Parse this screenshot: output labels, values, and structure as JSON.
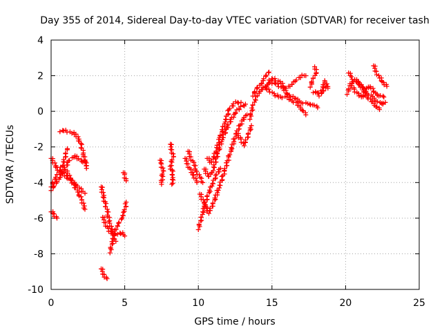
{
  "chart_data": {
    "type": "scatter",
    "title": "Day 355 of 2014, Sidereal Day-to-day VTEC variation (SDTVAR) for receiver tash",
    "xlabel": "GPS time / hours",
    "ylabel": "SDTVAR / TECUs",
    "xlim": [
      0,
      25
    ],
    "ylim": [
      -10,
      4
    ],
    "xticks": [
      0,
      5,
      10,
      15,
      20,
      25
    ],
    "yticks": [
      -10,
      -8,
      -6,
      -4,
      -2,
      0,
      2,
      4
    ],
    "grid": true,
    "marker": "+",
    "color": "#ff0000",
    "series_segments": [
      {
        "name": "s1",
        "points": [
          [
            0.0,
            -2.6
          ],
          [
            0.4,
            -3.2
          ],
          [
            0.9,
            -3.6
          ],
          [
            1.4,
            -3.9
          ],
          [
            1.9,
            -4.3
          ],
          [
            2.3,
            -4.6
          ]
        ]
      },
      {
        "name": "s2",
        "points": [
          [
            0.0,
            -4.4
          ],
          [
            0.4,
            -4.0
          ],
          [
            0.8,
            -3.4
          ],
          [
            1.2,
            -2.8
          ],
          [
            1.6,
            -2.5
          ],
          [
            2.1,
            -2.8
          ],
          [
            2.4,
            -2.9
          ]
        ]
      },
      {
        "name": "s3",
        "points": [
          [
            0.0,
            -4.2
          ],
          [
            0.4,
            -3.6
          ],
          [
            0.8,
            -3.0
          ],
          [
            1.0,
            -2.4
          ],
          [
            1.1,
            -2.1
          ]
        ]
      },
      {
        "name": "s4",
        "points": [
          [
            0.6,
            -1.1
          ],
          [
            1.0,
            -1.1
          ],
          [
            1.4,
            -1.2
          ],
          [
            1.7,
            -1.3
          ],
          [
            2.0,
            -1.8
          ],
          [
            2.2,
            -2.4
          ],
          [
            2.4,
            -3.2
          ]
        ]
      },
      {
        "name": "s5",
        "points": [
          [
            1.0,
            -3.3
          ],
          [
            1.4,
            -3.9
          ],
          [
            1.8,
            -4.5
          ],
          [
            2.1,
            -5.0
          ],
          [
            2.3,
            -5.5
          ]
        ]
      },
      {
        "name": "s6",
        "points": [
          [
            0.0,
            -5.6
          ],
          [
            0.2,
            -5.8
          ],
          [
            0.4,
            -6.0
          ]
        ]
      },
      {
        "name": "s7",
        "points": [
          [
            3.4,
            -8.8
          ],
          [
            3.6,
            -9.2
          ],
          [
            3.8,
            -9.4
          ]
        ]
      },
      {
        "name": "s8",
        "points": [
          [
            3.4,
            -4.2
          ],
          [
            3.6,
            -4.9
          ],
          [
            3.8,
            -5.6
          ],
          [
            4.0,
            -6.3
          ],
          [
            4.2,
            -6.9
          ],
          [
            4.4,
            -7.3
          ]
        ]
      },
      {
        "name": "s9",
        "points": [
          [
            3.5,
            -5.9
          ],
          [
            3.7,
            -6.3
          ],
          [
            3.9,
            -6.7
          ],
          [
            4.2,
            -6.9
          ],
          [
            4.5,
            -6.9
          ],
          [
            4.9,
            -6.8
          ],
          [
            5.0,
            -7.0
          ]
        ]
      },
      {
        "name": "s10",
        "points": [
          [
            4.0,
            -7.9
          ],
          [
            4.2,
            -7.2
          ],
          [
            4.4,
            -6.6
          ],
          [
            4.6,
            -6.3
          ],
          [
            4.8,
            -6.0
          ],
          [
            5.0,
            -5.6
          ],
          [
            5.1,
            -5.1
          ]
        ]
      },
      {
        "name": "s11",
        "points": [
          [
            4.9,
            -3.4
          ],
          [
            5.0,
            -3.6
          ],
          [
            5.1,
            -3.9
          ]
        ]
      },
      {
        "name": "s12",
        "points": [
          [
            7.4,
            -2.7
          ],
          [
            7.5,
            -3.0
          ],
          [
            7.6,
            -3.3
          ],
          [
            7.5,
            -4.1
          ]
        ]
      },
      {
        "name": "s13",
        "points": [
          [
            8.1,
            -1.8
          ],
          [
            8.2,
            -2.2
          ],
          [
            8.3,
            -2.5
          ],
          [
            8.1,
            -3.1
          ],
          [
            8.2,
            -3.3
          ],
          [
            8.3,
            -3.7
          ],
          [
            8.2,
            -4.1
          ]
        ]
      },
      {
        "name": "s14",
        "points": [
          [
            9.1,
            -2.6
          ],
          [
            9.3,
            -3.0
          ],
          [
            9.5,
            -3.4
          ],
          [
            9.7,
            -3.6
          ],
          [
            9.9,
            -4.0
          ]
        ]
      },
      {
        "name": "s15",
        "points": [
          [
            9.3,
            -2.2
          ],
          [
            9.5,
            -2.6
          ],
          [
            9.7,
            -3.0
          ],
          [
            9.9,
            -3.4
          ],
          [
            10.1,
            -3.7
          ],
          [
            10.3,
            -4.0
          ]
        ]
      },
      {
        "name": "s16",
        "points": [
          [
            10.0,
            -6.6
          ],
          [
            10.2,
            -6.0
          ],
          [
            10.4,
            -5.4
          ],
          [
            10.6,
            -4.8
          ],
          [
            10.9,
            -4.2
          ],
          [
            11.2,
            -3.6
          ],
          [
            11.5,
            -3.2
          ]
        ]
      },
      {
        "name": "s17",
        "points": [
          [
            10.1,
            -4.6
          ],
          [
            10.4,
            -5.2
          ],
          [
            10.7,
            -5.7
          ],
          [
            11.0,
            -5.2
          ],
          [
            11.4,
            -4.3
          ],
          [
            11.8,
            -3.3
          ],
          [
            12.2,
            -2.2
          ],
          [
            12.6,
            -1.2
          ],
          [
            13.0,
            -0.5
          ],
          [
            13.3,
            -0.2
          ]
        ]
      },
      {
        "name": "s18",
        "points": [
          [
            10.4,
            -3.2
          ],
          [
            10.7,
            -3.7
          ],
          [
            11.0,
            -3.3
          ],
          [
            11.3,
            -2.4
          ],
          [
            11.6,
            -1.6
          ],
          [
            12.0,
            -0.8
          ],
          [
            12.4,
            -0.2
          ],
          [
            12.8,
            0.2
          ],
          [
            13.2,
            0.4
          ]
        ]
      },
      {
        "name": "s19",
        "points": [
          [
            10.6,
            -2.6
          ],
          [
            10.9,
            -2.9
          ],
          [
            11.2,
            -2.2
          ],
          [
            11.5,
            -1.4
          ],
          [
            11.8,
            -0.6
          ],
          [
            12.1,
            0.1
          ],
          [
            12.5,
            0.5
          ],
          [
            12.9,
            0.5
          ]
        ]
      },
      {
        "name": "s20",
        "points": [
          [
            12.6,
            -1.2
          ],
          [
            12.9,
            -1.6
          ],
          [
            13.1,
            -1.9
          ],
          [
            13.4,
            -1.3
          ],
          [
            13.6,
            -0.8
          ]
        ]
      },
      {
        "name": "s21",
        "points": [
          [
            13.5,
            -0.4
          ],
          [
            13.7,
            0.3
          ],
          [
            14.0,
            0.9
          ],
          [
            14.3,
            1.2
          ],
          [
            14.6,
            1.4
          ],
          [
            14.8,
            1.6
          ],
          [
            15.0,
            1.7
          ]
        ]
      },
      {
        "name": "s22",
        "points": [
          [
            13.7,
            0.9
          ],
          [
            14.0,
            1.3
          ],
          [
            14.3,
            1.6
          ],
          [
            14.6,
            2.0
          ],
          [
            14.8,
            2.2
          ]
        ]
      },
      {
        "name": "s23",
        "points": [
          [
            14.4,
            1.4
          ],
          [
            14.8,
            1.2
          ],
          [
            15.2,
            0.9
          ],
          [
            15.6,
            0.8
          ],
          [
            16.0,
            0.8
          ],
          [
            16.4,
            0.6
          ],
          [
            16.8,
            0.3
          ],
          [
            17.1,
            0.1
          ],
          [
            17.3,
            -0.2
          ]
        ]
      },
      {
        "name": "s24",
        "points": [
          [
            15.0,
            1.6
          ],
          [
            15.4,
            1.5
          ],
          [
            15.8,
            1.2
          ],
          [
            16.2,
            0.9
          ],
          [
            16.6,
            0.7
          ],
          [
            17.0,
            0.5
          ],
          [
            17.4,
            0.4
          ],
          [
            17.8,
            0.4
          ],
          [
            18.1,
            0.2
          ]
        ]
      },
      {
        "name": "s25",
        "points": [
          [
            14.8,
            1.8
          ],
          [
            15.2,
            1.8
          ],
          [
            15.6,
            1.6
          ],
          [
            15.9,
            1.3
          ],
          [
            16.2,
            1.4
          ],
          [
            16.6,
            1.7
          ],
          [
            17.0,
            2.0
          ],
          [
            17.3,
            2.0
          ]
        ]
      },
      {
        "name": "s26",
        "points": [
          [
            17.6,
            1.4
          ],
          [
            17.8,
            1.8
          ],
          [
            18.0,
            2.2
          ],
          [
            17.9,
            2.5
          ]
        ]
      },
      {
        "name": "s27",
        "points": [
          [
            17.8,
            1.1
          ],
          [
            18.1,
            1.0
          ],
          [
            18.4,
            1.2
          ],
          [
            18.6,
            1.7
          ],
          [
            18.8,
            1.3
          ]
        ]
      },
      {
        "name": "s28",
        "points": [
          [
            18.2,
            0.9
          ],
          [
            18.5,
            1.1
          ],
          [
            18.7,
            1.4
          ]
        ]
      },
      {
        "name": "s29",
        "points": [
          [
            20.1,
            1.0
          ],
          [
            20.3,
            1.4
          ],
          [
            20.6,
            1.8
          ],
          [
            20.9,
            1.6
          ],
          [
            21.2,
            1.3
          ],
          [
            21.5,
            1.0
          ],
          [
            21.8,
            0.8
          ],
          [
            22.1,
            0.6
          ],
          [
            22.4,
            0.4
          ],
          [
            22.7,
            0.5
          ]
        ]
      },
      {
        "name": "s30",
        "points": [
          [
            20.2,
            2.2
          ],
          [
            20.4,
            1.9
          ],
          [
            20.7,
            1.7
          ],
          [
            21.0,
            1.5
          ],
          [
            21.2,
            1.1
          ],
          [
            21.5,
            0.8
          ],
          [
            21.8,
            0.5
          ],
          [
            22.1,
            0.3
          ],
          [
            22.3,
            0.1
          ]
        ]
      },
      {
        "name": "s31",
        "points": [
          [
            20.3,
            1.6
          ],
          [
            20.6,
            1.2
          ],
          [
            20.9,
            0.9
          ],
          [
            21.2,
            0.8
          ],
          [
            21.4,
            1.3
          ],
          [
            21.7,
            1.4
          ],
          [
            22.0,
            1.0
          ],
          [
            22.3,
            0.9
          ],
          [
            22.6,
            0.8
          ]
        ]
      },
      {
        "name": "s32",
        "points": [
          [
            21.9,
            2.6
          ],
          [
            22.1,
            2.2
          ],
          [
            22.3,
            1.9
          ],
          [
            22.6,
            1.6
          ],
          [
            22.8,
            1.4
          ]
        ]
      }
    ]
  }
}
